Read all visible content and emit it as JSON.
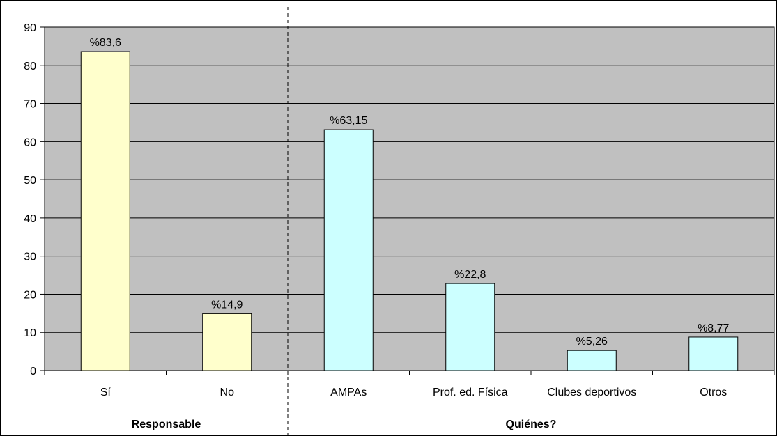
{
  "chart_data": {
    "type": "bar",
    "title": "",
    "xlabel": "",
    "ylabel": "",
    "ylim": [
      0,
      90
    ],
    "yticks": [
      0,
      10,
      20,
      30,
      40,
      50,
      60,
      70,
      80,
      90
    ],
    "grid": true,
    "plot_background": "#c0c0c0",
    "categories": [
      "Sí",
      "No",
      "AMPAs",
      "Prof. ed. Física",
      "Clubes deportivos",
      "Otros"
    ],
    "values": [
      83.6,
      14.9,
      63.15,
      22.8,
      5.26,
      8.77
    ],
    "data_labels": [
      "%83,6",
      "%14,9",
      "%63,15",
      "%22,8",
      "%5,26",
      "%8,77"
    ],
    "bar_colors": [
      "#ffffcc",
      "#ffffcc",
      "#ccffff",
      "#ccffff",
      "#ccffff",
      "#ccffff"
    ],
    "groups": [
      {
        "label": "Responsable",
        "categories": [
          "Sí",
          "No"
        ]
      },
      {
        "label": "Quiénes?",
        "categories": [
          "AMPAs",
          "Prof. ed. Física",
          "Clubes deportivos",
          "Otros"
        ]
      }
    ]
  }
}
